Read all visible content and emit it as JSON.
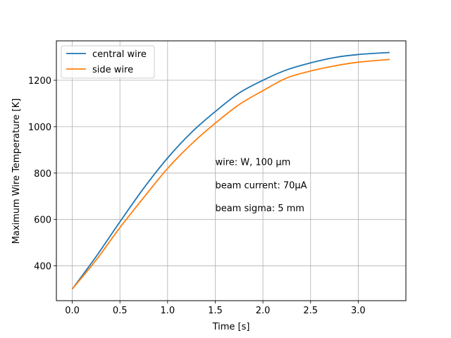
{
  "chart_data": {
    "type": "line",
    "title": "",
    "xlabel": "Time [s]",
    "ylabel": "Maximum Wire Temperature [K]",
    "xlim": [
      -0.1667,
      3.5
    ],
    "ylim": [
      250,
      1370
    ],
    "xticks": [
      0.0,
      0.5,
      1.0,
      1.5,
      2.0,
      2.5,
      3.0
    ],
    "xtick_labels": [
      "0.0",
      "0.5",
      "1.0",
      "1.5",
      "2.0",
      "2.5",
      "3.0"
    ],
    "yticks": [
      400,
      600,
      800,
      1000,
      1200
    ],
    "ytick_labels": [
      "400",
      "600",
      "800",
      "1000",
      "1200"
    ],
    "grid": true,
    "legend_position": "top-left",
    "series": [
      {
        "name": "central wire",
        "color": "#1f77b4",
        "x": [
          0.0,
          0.25,
          0.5,
          0.75,
          1.0,
          1.25,
          1.5,
          1.75,
          2.0,
          2.25,
          2.5,
          2.75,
          3.0,
          3.33
        ],
        "y": [
          300,
          440,
          590,
          735,
          865,
          975,
          1065,
          1145,
          1200,
          1245,
          1275,
          1298,
          1311,
          1320
        ]
      },
      {
        "name": "side wire",
        "color": "#ff7f0e",
        "x": [
          0.0,
          0.25,
          0.5,
          0.75,
          1.0,
          1.25,
          1.5,
          1.75,
          2.0,
          2.25,
          2.5,
          2.75,
          3.0,
          3.33
        ],
        "y": [
          300,
          425,
          565,
          695,
          820,
          925,
          1015,
          1095,
          1155,
          1210,
          1240,
          1262,
          1278,
          1290
        ]
      }
    ],
    "annotations": [
      {
        "text": "wire: W, 100 µm",
        "x": 1.5,
        "y": 850
      },
      {
        "text": "beam current:  70µA",
        "x": 1.5,
        "y": 750
      },
      {
        "text": "beam sigma: 5 mm",
        "x": 1.5,
        "y": 650
      }
    ]
  }
}
